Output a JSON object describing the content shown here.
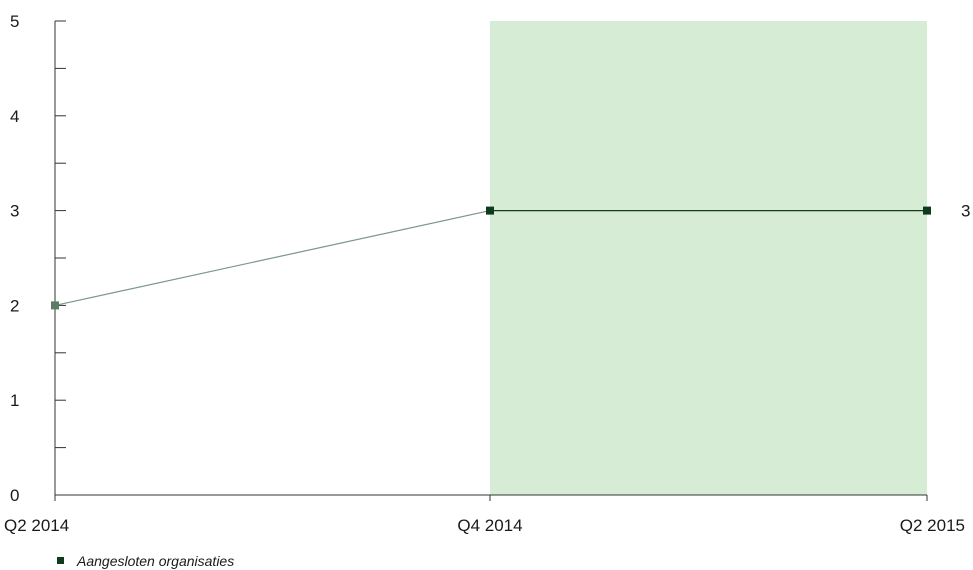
{
  "chart_data": {
    "type": "line",
    "categories": [
      "Q2 2014",
      "Q4 2014",
      "Q2 2015"
    ],
    "x_axis_labels": [
      "Q2 2014",
      "Q4 2014",
      "Q2 2015"
    ],
    "y_tick_labels": [
      "0",
      "1",
      "2",
      "3",
      "4",
      "5"
    ],
    "ylim": [
      0,
      5
    ],
    "y_minor_step": 0.5,
    "highlight_range": [
      "Q4 2014",
      "Q2 2015"
    ],
    "series": [
      {
        "name": "Aangesloten organisaties",
        "values": [
          2,
          3,
          3
        ],
        "end_label": "3"
      }
    ],
    "legend": {
      "position": "bottom-left"
    },
    "grid": false,
    "colors": {
      "highlight_fill": "#d7ecd5",
      "line_past": "#7a9886",
      "line_recent": "#123c22",
      "marker_past": "#5b7d68",
      "marker_recent": "#0e3a1d",
      "axis": "#333333"
    }
  }
}
